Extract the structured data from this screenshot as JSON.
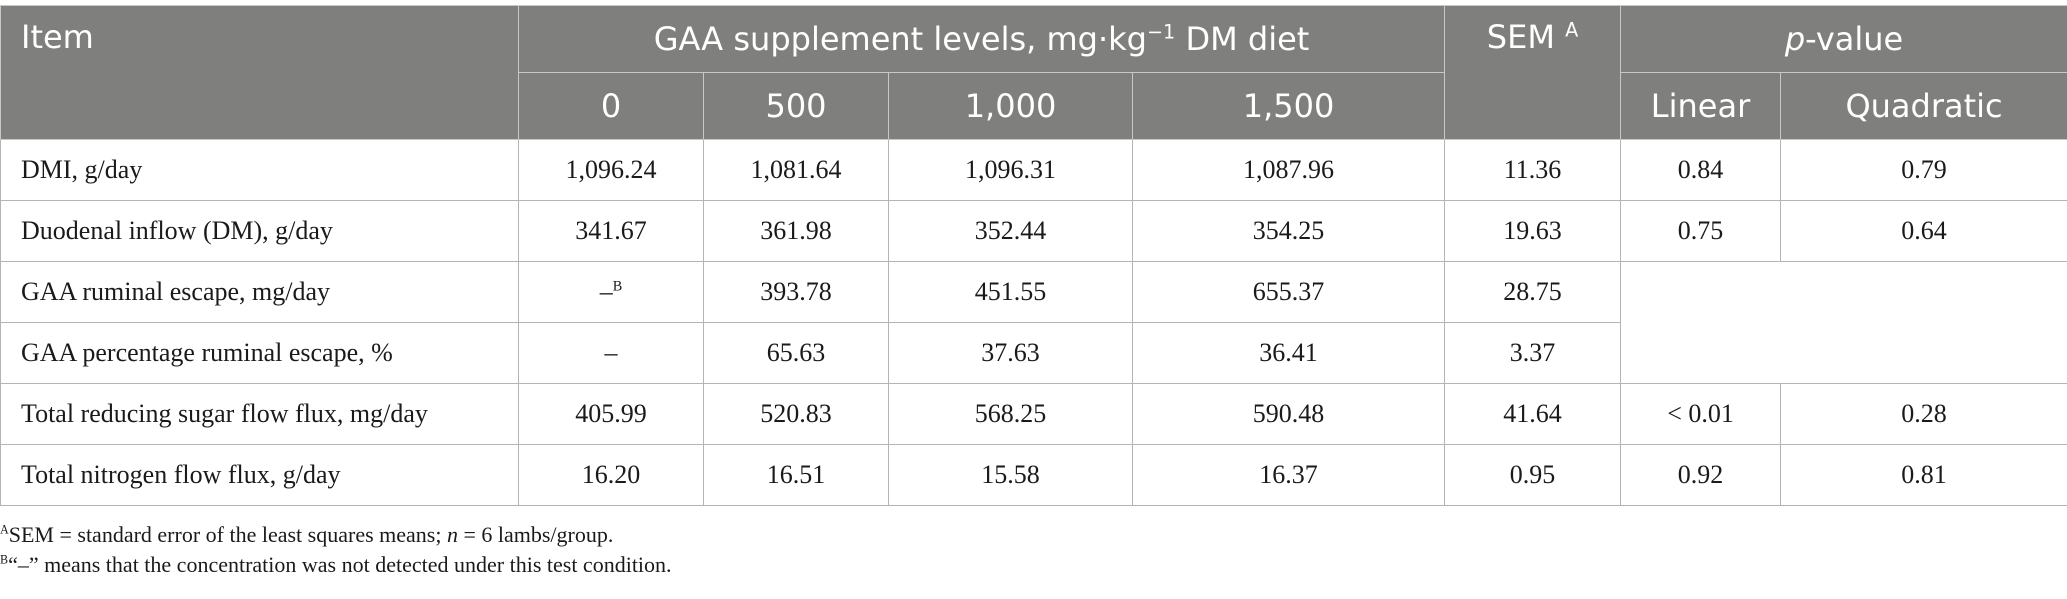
{
  "header": {
    "item": "Item",
    "gaa_group": "GAA supplement levels, mg·kg",
    "gaa_group_sup": "−1",
    "gaa_group_tail": " DM diet",
    "sem": "SEM ",
    "sem_sup": "A",
    "pvalue_italic": "p",
    "pvalue_rest": "-value",
    "levels": [
      "0",
      "500",
      "1,000",
      "1,500"
    ],
    "linear": "Linear",
    "quadratic": "Quadratic"
  },
  "rows": [
    {
      "item": "DMI, g/day",
      "v0": "1,096.24",
      "v500": "1,081.64",
      "v1000": "1,096.31",
      "v1500": "1,087.96",
      "sem": "11.36",
      "linear": "0.84",
      "quadratic": "0.79"
    },
    {
      "item": "Duodenal inflow (DM), g/day",
      "v0": "341.67",
      "v500": "361.98",
      "v1000": "352.44",
      "v1500": "354.25",
      "sem": "19.63",
      "linear": "0.75",
      "quadratic": "0.64"
    },
    {
      "item": "GAA ruminal escape, mg/day",
      "v0": "–",
      "v0_sup": "B",
      "v500": "393.78",
      "v1000": "451.55",
      "v1500": "655.37",
      "sem": "28.75"
    },
    {
      "item": "GAA percentage ruminal escape, %",
      "v0": "–",
      "v500": "65.63",
      "v1000": "37.63",
      "v1500": "36.41",
      "sem": "3.37"
    },
    {
      "item": "Total reducing sugar flow flux, mg/day",
      "v0": "405.99",
      "v500": "520.83",
      "v1000": "568.25",
      "v1500": "590.48",
      "sem": "41.64",
      "linear": "< 0.01",
      "quadratic": "0.28"
    },
    {
      "item": "Total nitrogen flow flux, g/day",
      "v0": "16.20",
      "v500": "16.51",
      "v1000": "15.58",
      "v1500": "16.37",
      "sem": "0.95",
      "linear": "0.92",
      "quadratic": "0.81"
    }
  ],
  "notes": {
    "a_sup": "A",
    "a_text_1": "SEM = standard error of the least squares means; ",
    "a_n": "n",
    "a_text_2": " = 6 lambs/group.",
    "b_sup": "B",
    "b_text": "“–” means that the concentration was not detected under this test condition."
  }
}
